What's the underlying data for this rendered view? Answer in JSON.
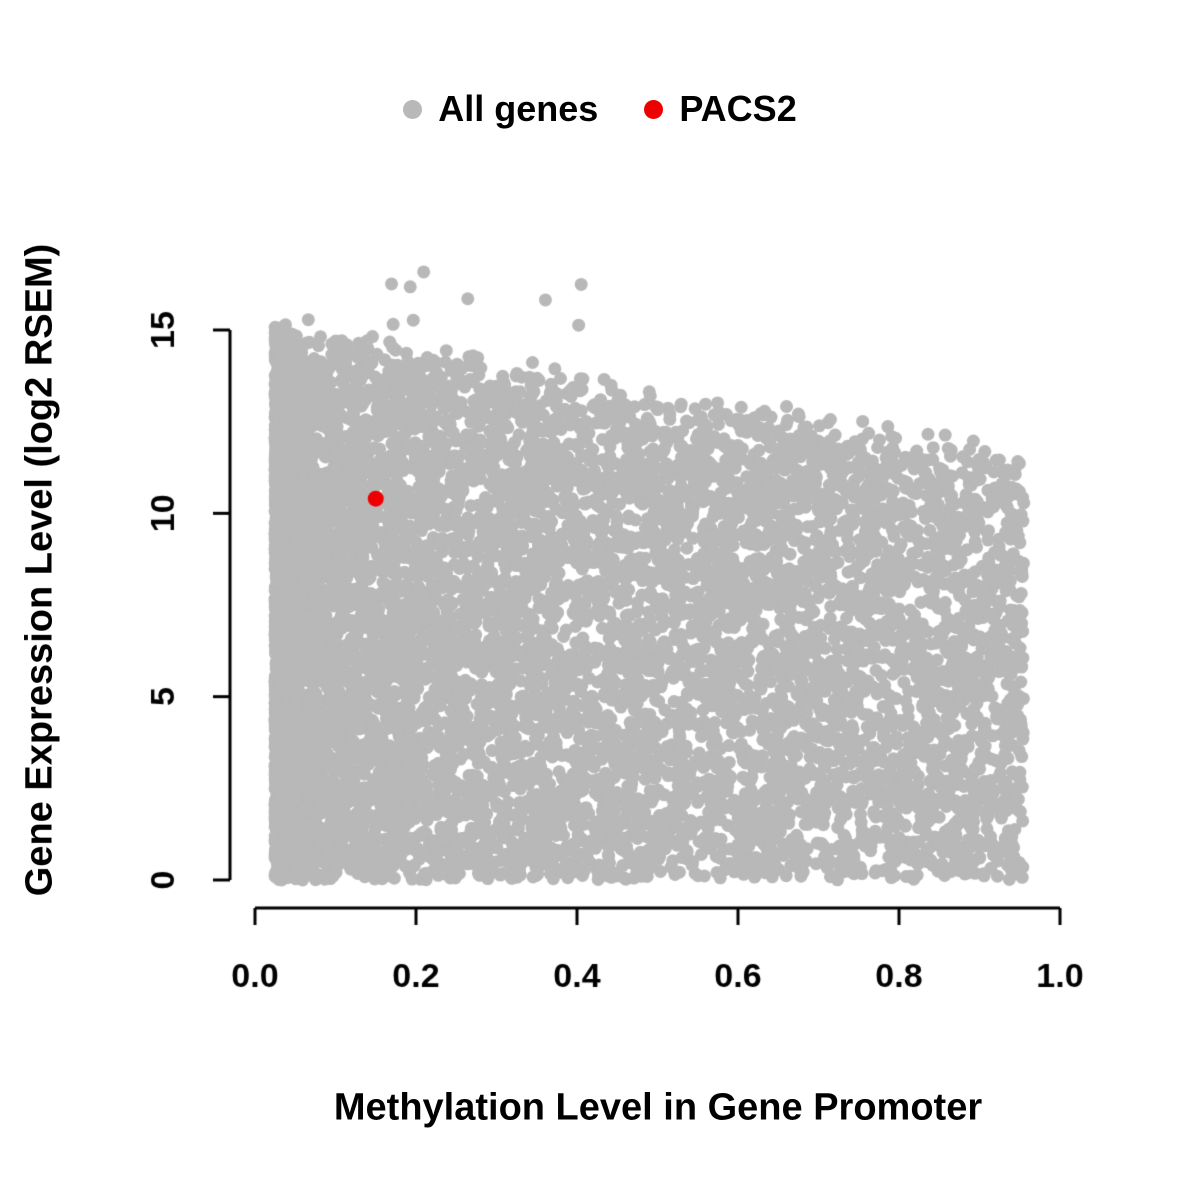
{
  "figure": {
    "background_color": "#ffffff",
    "axis_color": "#000000"
  },
  "legend": {
    "position": "top-center",
    "items": [
      {
        "label": "All genes",
        "color": "#b8b8b8"
      },
      {
        "label": "PACS2",
        "color": "#ee0000"
      }
    ]
  },
  "chart_data": {
    "type": "scatter",
    "title": "",
    "xlabel": "Methylation Level in Gene Promoter",
    "ylabel": "Gene Expression Level (log2 RSEM)",
    "xlim": [
      0.0,
      1.0
    ],
    "ylim": [
      0,
      15
    ],
    "grid": false,
    "legend_position": "top",
    "x_ticks": [
      0.0,
      0.2,
      0.4,
      0.6,
      0.8,
      1.0
    ],
    "x_tick_labels": [
      "0.0",
      "0.2",
      "0.4",
      "0.6",
      "0.8",
      "1.0"
    ],
    "y_ticks": [
      0,
      5,
      10,
      15
    ],
    "y_tick_labels": [
      "0",
      "5",
      "10",
      "15"
    ],
    "marker_radius": 6.5,
    "series": [
      {
        "name": "All genes",
        "color": "#b8b8b8",
        "type": "procedural_cloud",
        "description": "Dense cloud of ~9000 genes; methylation skewed toward low values; expression fills 0 up to an upper envelope that declines from ~15 at methylation 0.05 to ~11.5 at methylation 0.95; a few outliers reach ~17 at low methylation.",
        "n": 9000,
        "seed": 42,
        "x_min": 0.025,
        "x_max": 0.955,
        "low_x_weight": 0.7,
        "low_x_power": 2.1,
        "envelope_intercept": 14.8,
        "envelope_slope": -3.6,
        "envelope_jitter": 1.2,
        "outlier_prob": 0.002,
        "outlier_x_max": 0.45,
        "outlier_max_y": 17.1
      },
      {
        "name": "PACS2",
        "color": "#ee0000",
        "marker_radius": 8,
        "points": [
          [
            0.15,
            10.4
          ]
        ]
      }
    ]
  }
}
